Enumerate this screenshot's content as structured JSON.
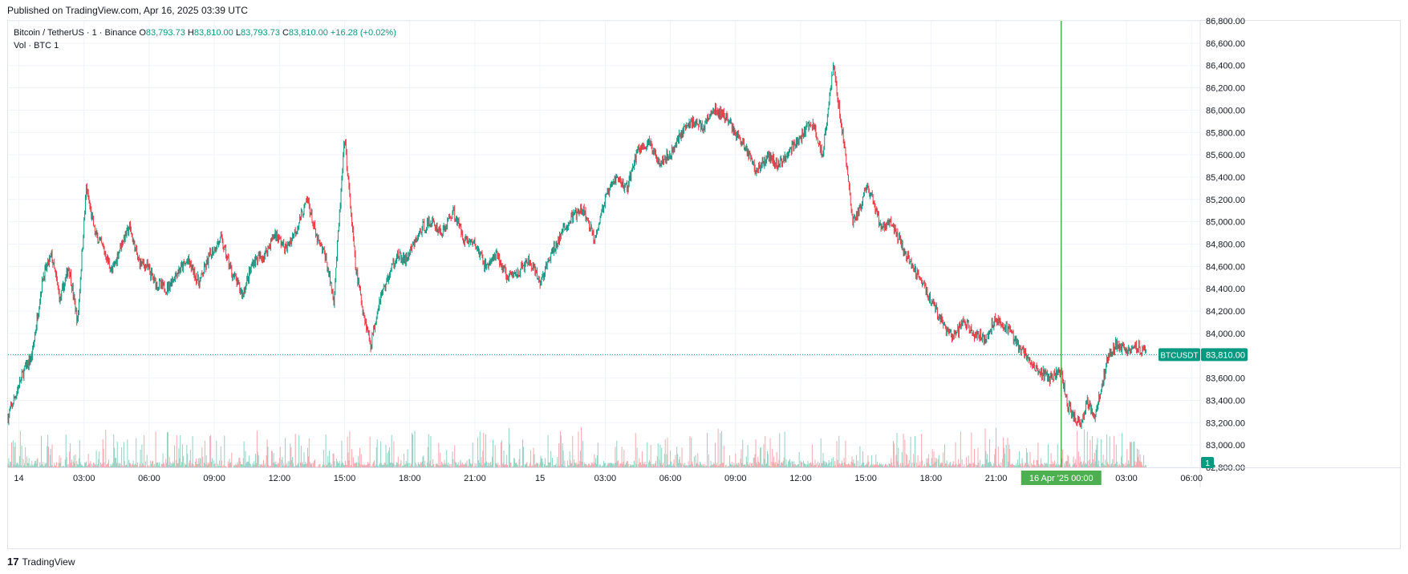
{
  "header": {
    "published": "Published on TradingView.com, Apr 16, 2025 03:39 UTC"
  },
  "legend": {
    "symbol": "Bitcoin / TetherUS · 1 · Binance",
    "o_label": "O",
    "o_value": "83,793.73",
    "h_label": "H",
    "h_value": "83,810.00",
    "l_label": "L",
    "l_value": "83,793.73",
    "c_label": "C",
    "c_value": "83,810.00",
    "change": "+16.28 (+0.02%)",
    "vol_label": "Vol · BTC",
    "vol_value": "1"
  },
  "footer": {
    "brand": "TradingView",
    "logo_glyph": "17"
  },
  "colors": {
    "up": "#089981",
    "down": "#f23645",
    "grid": "#f0f3fa",
    "axis_text": "#131722",
    "price_badge": "#089981",
    "cursor_line": "#4caf50"
  },
  "chart_data": {
    "type": "candlestick",
    "symbol": "BTCUSDT",
    "interval": "1",
    "yaxis": {
      "min": 82800,
      "max": 86800,
      "ticks": [
        86800,
        86600,
        86400,
        86200,
        86000,
        85800,
        85600,
        85400,
        85200,
        85000,
        84800,
        84600,
        84400,
        84200,
        84000,
        83800,
        83600,
        83400,
        83200,
        83000,
        82800
      ],
      "tick_labels": [
        "86,800.00",
        "86,600.00",
        "86,400.00",
        "86,200.00",
        "86,000.00",
        "85,800.00",
        "85,600.00",
        "85,400.00",
        "85,200.00",
        "85,000.00",
        "84,800.00",
        "84,600.00",
        "84,400.00",
        "84,200.00",
        "84,000.00",
        "83,800.00",
        "83,600.00",
        "83,400.00",
        "83,200.00",
        "83,000.00",
        "82,800.00"
      ]
    },
    "xaxis": {
      "start_hour": -0.5,
      "end_hour": 54.4,
      "tick_hours": [
        0,
        3,
        6,
        9,
        12,
        15,
        18,
        21,
        24,
        27,
        30,
        33,
        36,
        39,
        42,
        45,
        51,
        54
      ],
      "tick_labels": [
        "14",
        "03:00",
        "06:00",
        "09:00",
        "12:00",
        "15:00",
        "18:00",
        "21:00",
        "15",
        "03:00",
        "06:00",
        "09:00",
        "12:00",
        "15:00",
        "18:00",
        "21:00",
        "03:00",
        "06:00"
      ]
    },
    "path_hours": [
      -0.5,
      0.2,
      0.6,
      1.1,
      1.5,
      1.9,
      2.3,
      2.7,
      3.1,
      3.5,
      3.9,
      4.3,
      4.7,
      5.1,
      5.5,
      5.9,
      6.3,
      6.8,
      7.3,
      7.8,
      8.3,
      8.8,
      9.3,
      9.8,
      10.3,
      10.8,
      11.3,
      11.8,
      12.3,
      12.8,
      13.3,
      13.7,
      14.1,
      14.5,
      15.0,
      15.5,
      15.8,
      16.2,
      16.6,
      17.0,
      17.4,
      17.8,
      18.2,
      18.6,
      19.0,
      19.5,
      20.0,
      20.5,
      21.0,
      21.5,
      22.0,
      22.5,
      23.0,
      23.5,
      24.0,
      24.5,
      25.0,
      25.5,
      26.0,
      26.5,
      27.0,
      27.5,
      28.0,
      28.5,
      29.0,
      29.5,
      30.0,
      30.5,
      31.0,
      31.5,
      32.0,
      32.5,
      33.0,
      33.5,
      34.0,
      34.5,
      35.0,
      35.5,
      36.0,
      36.5,
      37.0,
      37.5,
      38.0,
      38.4,
      38.7,
      39.0,
      39.3,
      39.7,
      40.1,
      40.5,
      41.0,
      41.5,
      42.0,
      42.5,
      43.0,
      43.5,
      44.0,
      44.5,
      45.0,
      45.5,
      46.0,
      46.5,
      47.0,
      47.5,
      48.0,
      48.3,
      48.6,
      48.9,
      49.2,
      49.5,
      49.8,
      50.1,
      50.5,
      51.0,
      51.5,
      51.9
    ],
    "path_prices": [
      83250,
      83650,
      83800,
      84500,
      84700,
      84300,
      84600,
      84100,
      85300,
      84900,
      84750,
      84550,
      84800,
      84950,
      84650,
      84600,
      84450,
      84400,
      84550,
      84650,
      84450,
      84700,
      84850,
      84550,
      84350,
      84650,
      84700,
      84900,
      84750,
      84950,
      85200,
      84850,
      84700,
      84300,
      85750,
      84600,
      84250,
      83900,
      84300,
      84500,
      84700,
      84650,
      84800,
      84950,
      85000,
      84900,
      85100,
      84850,
      84800,
      84600,
      84700,
      84500,
      84550,
      84650,
      84450,
      84700,
      84900,
      85050,
      85100,
      84850,
      85200,
      85400,
      85300,
      85650,
      85700,
      85550,
      85600,
      85800,
      85900,
      85850,
      86000,
      85950,
      85800,
      85650,
      85450,
      85600,
      85500,
      85650,
      85750,
      85900,
      85600,
      86400,
      85700,
      85000,
      85100,
      85300,
      85200,
      84950,
      85000,
      84850,
      84650,
      84500,
      84300,
      84100,
      83950,
      84100,
      84000,
      83950,
      84150,
      84050,
      83900,
      83750,
      83650,
      83600,
      83650,
      83350,
      83250,
      83200,
      83400,
      83250,
      83450,
      83750,
      83900,
      83850,
      83900,
      83810
    ],
    "last_price": 83810,
    "last_price_label": "83,810.00",
    "last_price_tag": "BTCUSDT",
    "volume_axis_label": "1",
    "cursor": {
      "hour": 48.0,
      "label": "16 Apr '25   00:00"
    }
  }
}
